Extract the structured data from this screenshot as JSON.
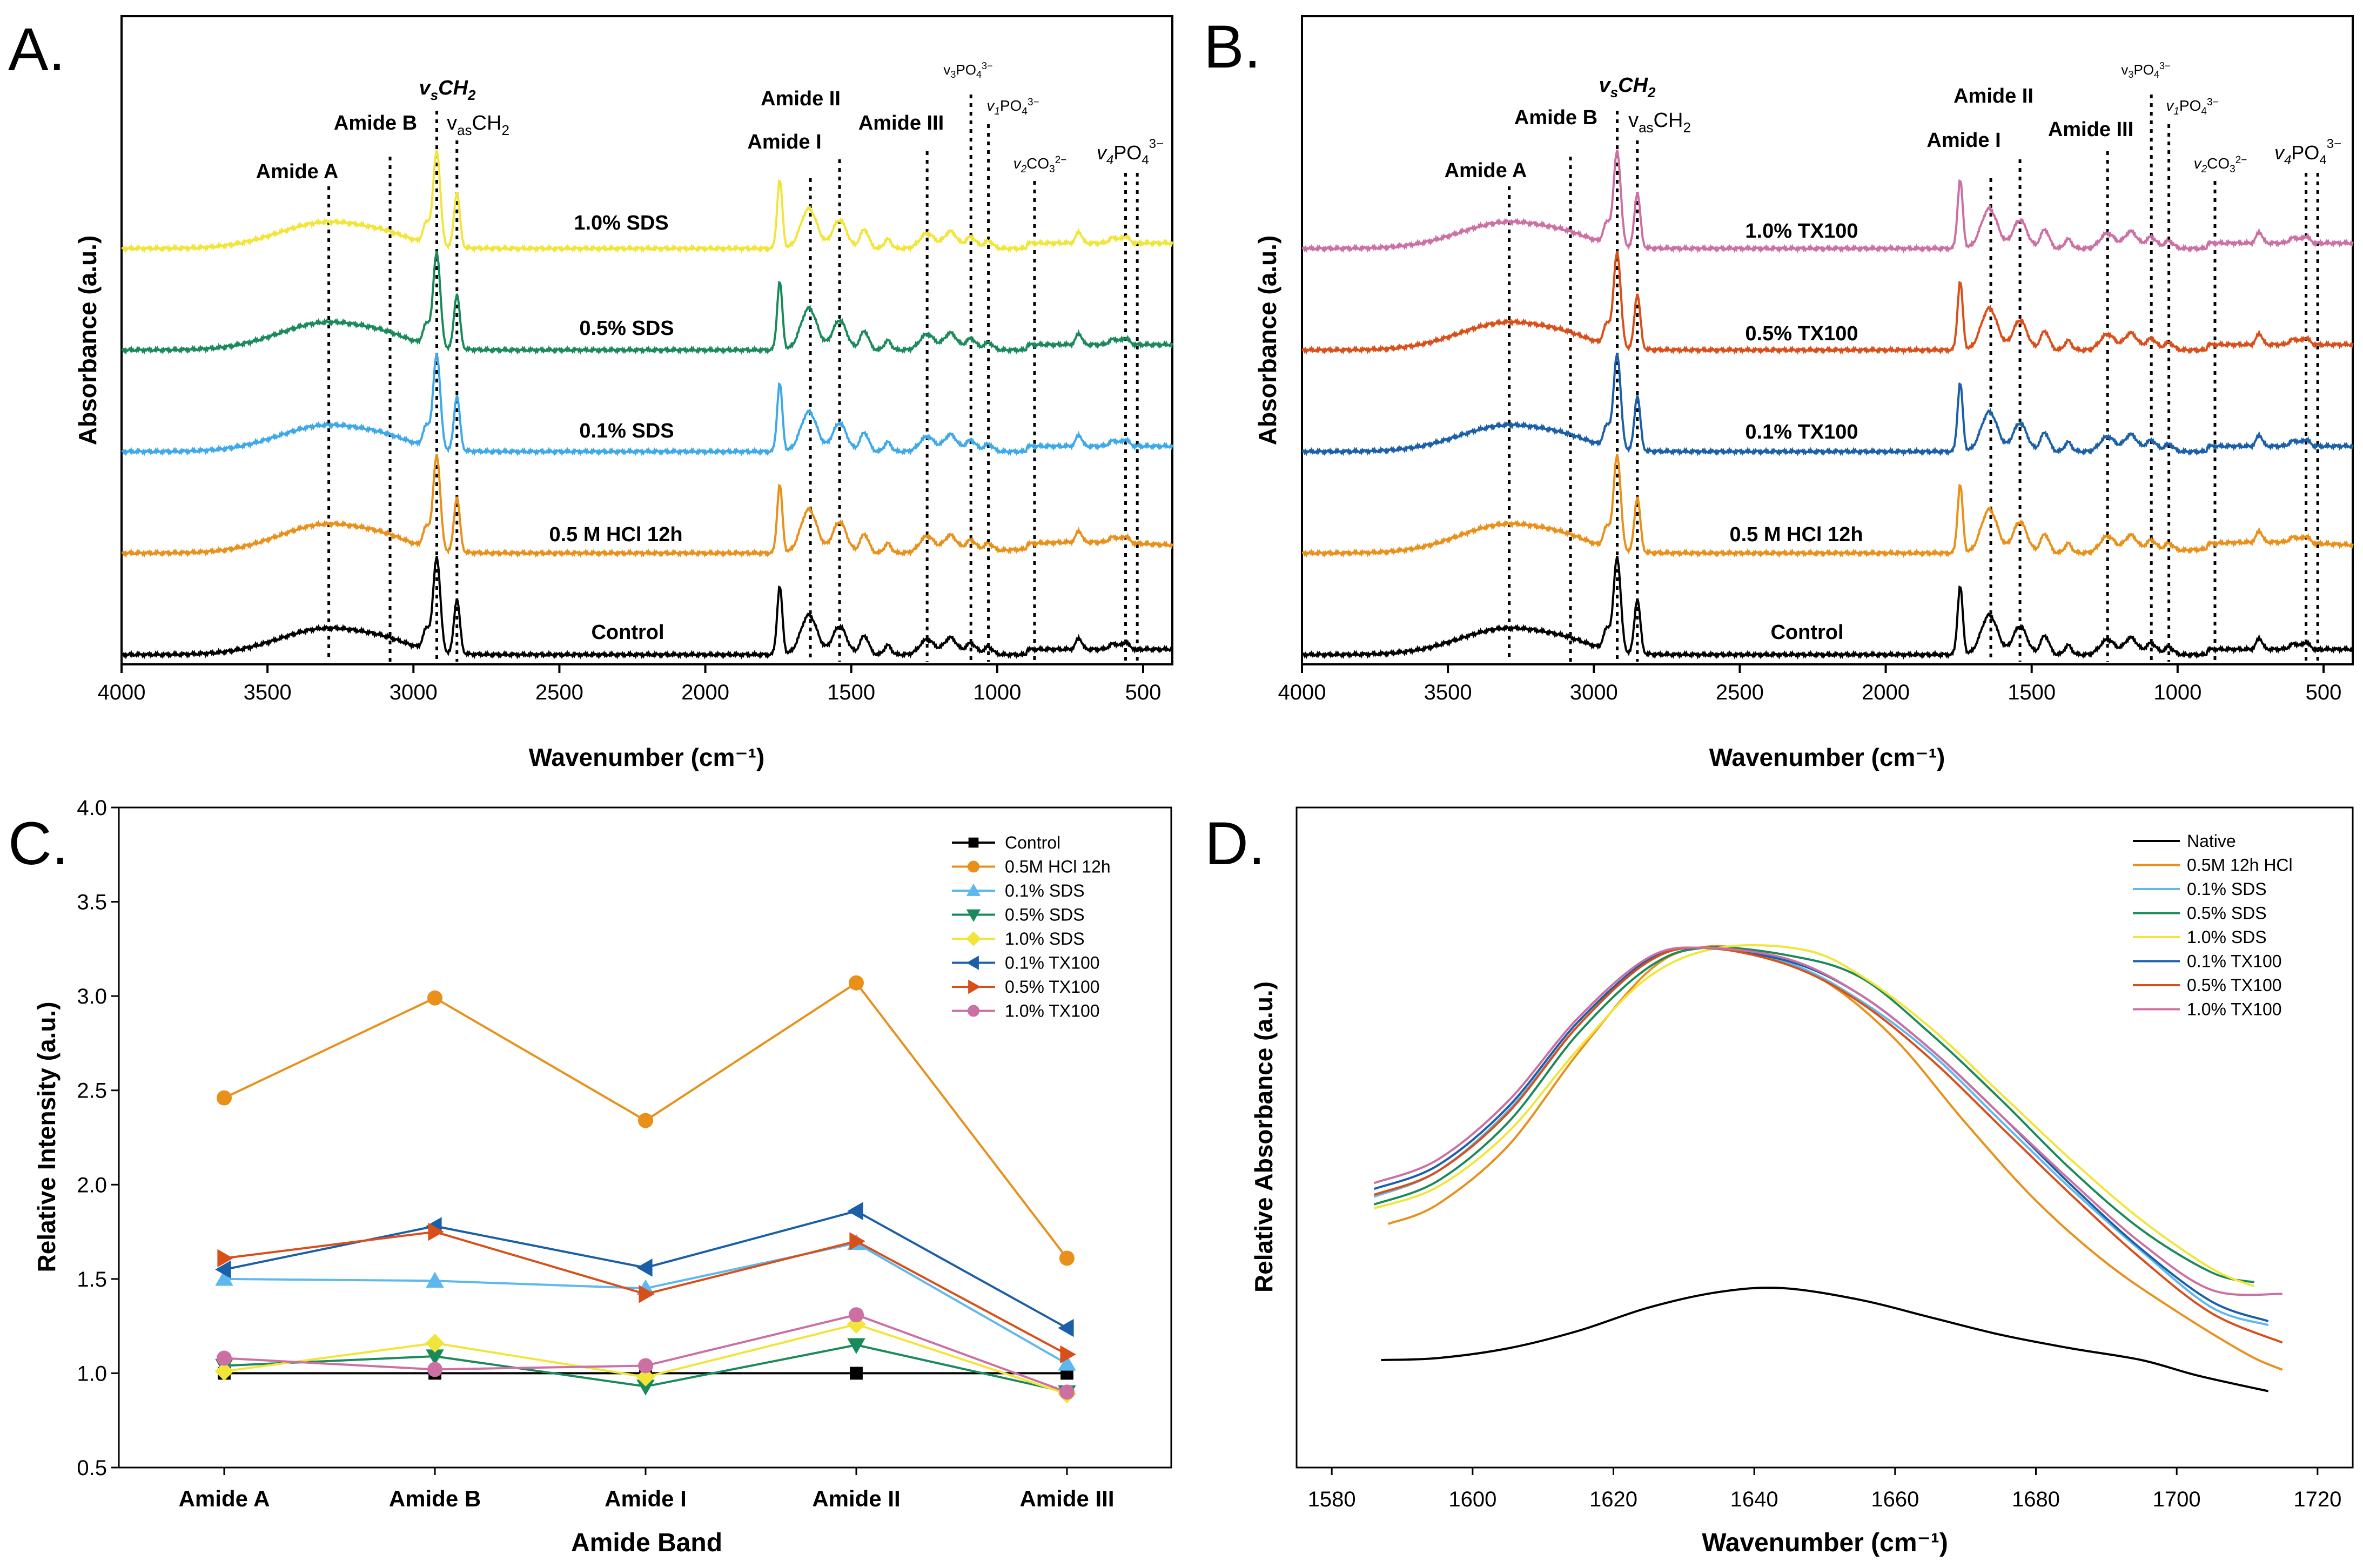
{
  "chart_data": [
    {
      "panel": "A.",
      "type": "line",
      "title": "",
      "xlabel": "Wavenumber (cm⁻¹)",
      "ylabel": "Absorbance (a.u.)",
      "xlim": [
        4000,
        400
      ],
      "xticks": [
        4000,
        3500,
        3000,
        2500,
        2000,
        1500,
        1000,
        500
      ],
      "band_markers": [
        {
          "label": "Amide A",
          "x": 3290
        },
        {
          "label": "Amide B",
          "x": 3080
        },
        {
          "label": "vsCH2",
          "x": 2920
        },
        {
          "label": "vasCH2",
          "x": 2851
        },
        {
          "label": "Amide II",
          "x": 1540
        },
        {
          "label": "Amide I",
          "x": 1640
        },
        {
          "label": "Amide III",
          "x": 1240
        },
        {
          "label": "v3PO4",
          "x": 1090
        },
        {
          "label": "v1PO4",
          "x": 1030
        },
        {
          "label": "v2CO3",
          "x": 872
        },
        {
          "label": "v4PO4",
          "x": 560
        },
        {
          "label": "v4PO4b",
          "x": 520
        }
      ],
      "series": [
        {
          "name": "1.0% SDS",
          "color": "#f2e53a",
          "order": 4,
          "strength": 1.0
        },
        {
          "name": "0.5% SDS",
          "color": "#1a8a5a",
          "order": 3,
          "strength": 1.05
        },
        {
          "name": "0.1% SDS",
          "color": "#3da9e8",
          "order": 2,
          "strength": 1.0
        },
        {
          "name": "0.5 M HCl 12h",
          "color": "#e8901a",
          "order": 1,
          "strength": 1.1
        },
        {
          "name": "Control",
          "color": "#000000",
          "order": 0,
          "strength": 1.0
        }
      ]
    },
    {
      "panel": "B.",
      "type": "line",
      "title": "",
      "xlabel": "Wavenumber (cm⁻¹)",
      "ylabel": "Absorbance (a.u.)",
      "xlim": [
        4000,
        400
      ],
      "xticks": [
        4000,
        3500,
        3000,
        2500,
        2000,
        1500,
        1000,
        500
      ],
      "series": [
        {
          "name": "1.0% TX100",
          "color": "#cc6fa3",
          "order": 4,
          "strength": 1.0
        },
        {
          "name": "0.5% TX100",
          "color": "#d94f1a",
          "order": 3,
          "strength": 1.05
        },
        {
          "name": "0.1% TX100",
          "color": "#1a5fa8",
          "order": 2,
          "strength": 1.0
        },
        {
          "name": "0.5 M HCl 12h",
          "color": "#e8901a",
          "order": 1,
          "strength": 1.1
        },
        {
          "name": "Control",
          "color": "#000000",
          "order": 0,
          "strength": 1.0
        }
      ]
    },
    {
      "panel": "C.",
      "type": "line",
      "xlabel": "Amide Band",
      "ylabel": "Relative Intensity (a.u.)",
      "categories": [
        "Amide A",
        "Amide B",
        "Amide I",
        "Amide II",
        "Amide III"
      ],
      "ylim": [
        0.5,
        4.0
      ],
      "yticks": [
        "0.5",
        "1.0",
        "1.5",
        "2.0",
        "2.5",
        "3.0",
        "3.5",
        "4.0"
      ],
      "legend_position": "top-right",
      "series": [
        {
          "name": "Control",
          "color": "#000000",
          "marker": "square",
          "values": [
            1.0,
            1.0,
            1.0,
            1.0,
            1.0
          ]
        },
        {
          "name": "0.5M HCl 12h",
          "color": "#e8901a",
          "marker": "circle",
          "values": [
            2.46,
            2.99,
            2.34,
            3.07,
            1.61
          ]
        },
        {
          "name": "0.1% SDS",
          "color": "#5cb8ee",
          "marker": "triangle-up",
          "values": [
            1.5,
            1.49,
            1.45,
            1.69,
            1.05
          ]
        },
        {
          "name": "0.5% SDS",
          "color": "#1a8a5a",
          "marker": "triangle-down",
          "values": [
            1.04,
            1.09,
            0.93,
            1.15,
            0.9
          ]
        },
        {
          "name": "1.0% SDS",
          "color": "#f2e53a",
          "marker": "diamond",
          "values": [
            1.01,
            1.16,
            0.98,
            1.26,
            0.89
          ]
        },
        {
          "name": "0.1% TX100",
          "color": "#1a5fa8",
          "marker": "triangle-left",
          "values": [
            1.55,
            1.78,
            1.56,
            1.86,
            1.24
          ]
        },
        {
          "name": "0.5% TX100",
          "color": "#d94f1a",
          "marker": "triangle-right",
          "values": [
            1.61,
            1.75,
            1.42,
            1.7,
            1.1
          ]
        },
        {
          "name": "1.0% TX100",
          "color": "#cc6fa3",
          "marker": "circle",
          "values": [
            1.08,
            1.02,
            1.04,
            1.31,
            0.9
          ]
        }
      ]
    },
    {
      "panel": "D.",
      "type": "line",
      "xlabel": "Wavenumber (cm⁻¹)",
      "ylabel": "Relative Absorbance (a.u.)",
      "xlim": [
        1575,
        1725
      ],
      "xticks": [
        1580,
        1600,
        1620,
        1640,
        1660,
        1680,
        1700,
        1720
      ],
      "legend_position": "top-right",
      "series": [
        {
          "name": "Native",
          "color": "#000000",
          "x": [
            1587,
            1595,
            1605,
            1615,
            1625,
            1635,
            1644,
            1655,
            1665,
            1675,
            1685,
            1695,
            1703,
            1713
          ],
          "y": [
            0.0,
            0.01,
            0.06,
            0.15,
            0.27,
            0.35,
            0.37,
            0.31,
            0.22,
            0.13,
            0.06,
            0.0,
            -0.08,
            -0.16
          ]
        },
        {
          "name": "0.5M 12h HCl",
          "color": "#e8901a",
          "x": [
            1588,
            1595,
            1605,
            1615,
            1625,
            1632,
            1640,
            1650,
            1660,
            1670,
            1680,
            1690,
            1700,
            1710,
            1715
          ],
          "y": [
            0.7,
            0.8,
            1.1,
            1.58,
            2.0,
            2.12,
            2.1,
            1.95,
            1.65,
            1.22,
            0.82,
            0.5,
            0.25,
            0.03,
            -0.05
          ]
        },
        {
          "name": "0.1% SDS",
          "color": "#5cb8ee",
          "x": [
            1586,
            1595,
            1605,
            1615,
            1625,
            1633,
            1645,
            1655,
            1665,
            1675,
            1685,
            1695,
            1705,
            1713
          ],
          "y": [
            0.84,
            0.97,
            1.28,
            1.72,
            2.05,
            2.12,
            2.04,
            1.85,
            1.58,
            1.23,
            0.88,
            0.56,
            0.27,
            0.18
          ]
        },
        {
          "name": "0.5% SDS",
          "color": "#1a8a5a",
          "x": [
            1586,
            1595,
            1605,
            1615,
            1625,
            1633,
            1645,
            1655,
            1665,
            1675,
            1685,
            1695,
            1705,
            1711
          ],
          "y": [
            0.8,
            0.92,
            1.22,
            1.68,
            2.02,
            2.12,
            2.08,
            1.97,
            1.68,
            1.34,
            0.98,
            0.67,
            0.45,
            0.4
          ]
        },
        {
          "name": "1.0% SDS",
          "color": "#f2e53a",
          "x": [
            1586,
            1595,
            1605,
            1615,
            1625,
            1635,
            1647,
            1655,
            1665,
            1675,
            1685,
            1695,
            1705,
            1711
          ],
          "y": [
            0.78,
            0.89,
            1.17,
            1.6,
            1.97,
            2.12,
            2.11,
            1.98,
            1.71,
            1.37,
            1.03,
            0.72,
            0.47,
            0.38
          ]
        },
        {
          "name": "0.1% TX100",
          "color": "#1a5fa8",
          "x": [
            1586,
            1595,
            1605,
            1615,
            1625,
            1632,
            1645,
            1655,
            1665,
            1675,
            1685,
            1695,
            1705,
            1713
          ],
          "y": [
            0.88,
            1.0,
            1.3,
            1.74,
            2.06,
            2.12,
            2.05,
            1.88,
            1.6,
            1.26,
            0.9,
            0.57,
            0.3,
            0.2
          ]
        },
        {
          "name": "0.5% TX100",
          "color": "#d94f1a",
          "x": [
            1586,
            1595,
            1605,
            1615,
            1625,
            1633,
            1645,
            1655,
            1665,
            1675,
            1685,
            1695,
            1705,
            1715
          ],
          "y": [
            0.85,
            0.97,
            1.27,
            1.72,
            2.05,
            2.12,
            2.03,
            1.84,
            1.55,
            1.2,
            0.85,
            0.52,
            0.24,
            0.09
          ]
        },
        {
          "name": "1.0% TX100",
          "color": "#cc6fa3",
          "x": [
            1586,
            1595,
            1605,
            1615,
            1625,
            1633,
            1645,
            1655,
            1665,
            1675,
            1685,
            1695,
            1705,
            1715
          ],
          "y": [
            0.91,
            1.03,
            1.33,
            1.76,
            2.07,
            2.12,
            2.06,
            1.88,
            1.6,
            1.26,
            0.92,
            0.6,
            0.36,
            0.34
          ]
        }
      ]
    }
  ],
  "panelA": {
    "panel_label": "A.",
    "ylabel": "Absorbance (a.u.)",
    "xlabel": "Wavenumber (cm⁻¹)",
    "series_labels": [
      "1.0% SDS",
      "0.5% SDS",
      "0.1% SDS",
      "0.5 M HCl 12h",
      "Control"
    ]
  },
  "panelB": {
    "panel_label": "B.",
    "ylabel": "Absorbance (a.u.)",
    "xlabel": "Wavenumber (cm⁻¹)",
    "series_labels": [
      "1.0% TX100",
      "0.5% TX100",
      "0.1% TX100",
      "0.5 M HCl 12h",
      "Control"
    ]
  },
  "band_labels": {
    "amide_a": "Amide A",
    "amide_b": "Amide B",
    "amide_i": "Amide I",
    "amide_ii": "Amide II",
    "amide_iii": "Amide III",
    "vs_ch2_v": "v",
    "vs_ch2_s": "s",
    "vs_ch2_rest": "CH",
    "vs_ch2_2": "2",
    "vas_v": "v",
    "vas_as": "as",
    "vas_ch": "CH",
    "vas_2": "2",
    "v3_v": "v",
    "v3_3": "3",
    "v3_po": "PO",
    "v3_4": "4",
    "v3_charge": "3−",
    "v1_v": "v",
    "v1_1": "1",
    "v1_po": "PO",
    "v1_4": "4",
    "v1_charge": "3−",
    "v2_v": "v",
    "v2_2": "2",
    "v2_co": "CO",
    "v2_3": "3",
    "v2_charge": "2−",
    "v4_v": "v",
    "v4_4": "4",
    "v4_po": "PO",
    "v4_sub4": "4",
    "v4_charge": "3−"
  },
  "panelC": {
    "panel_label": "C.",
    "xlabel": "Amide Band",
    "ylabel": "Relative Intensity (a.u.)"
  },
  "panelD": {
    "panel_label": "D.",
    "xlabel": "Wavenumber (cm⁻¹)",
    "ylabel": "Relative Absorbance (a.u.)"
  }
}
